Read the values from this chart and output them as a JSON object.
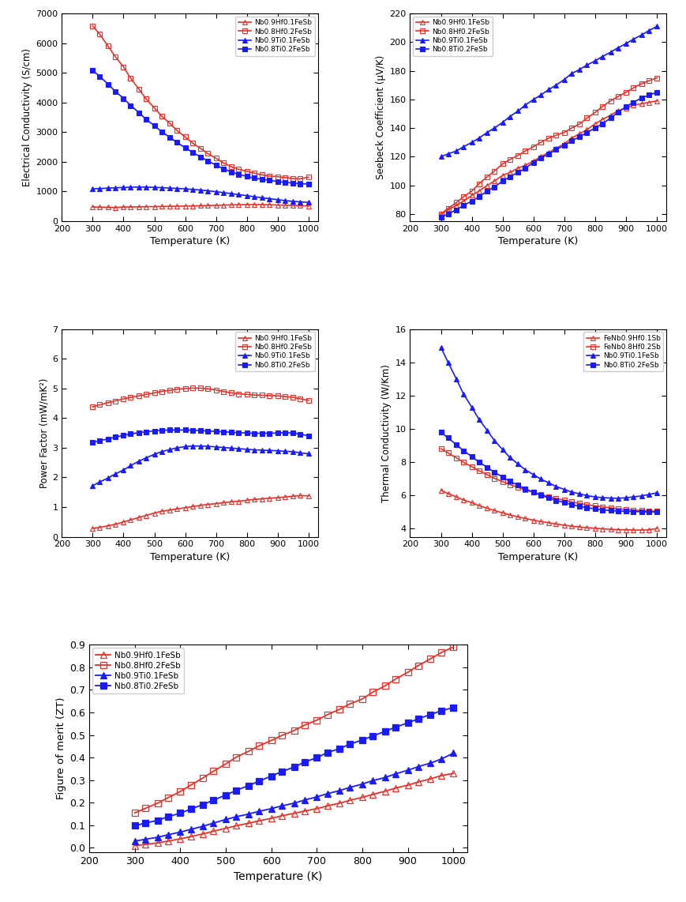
{
  "temperature": [
    300,
    323,
    350,
    373,
    400,
    423,
    450,
    473,
    500,
    523,
    550,
    573,
    600,
    623,
    650,
    673,
    700,
    723,
    750,
    773,
    800,
    823,
    850,
    873,
    900,
    923,
    950,
    973,
    1000
  ],
  "elec_cond": {
    "Nb0.9Hf0.1FeSb": [
      480,
      475,
      468,
      462,
      478,
      480,
      482,
      488,
      492,
      496,
      500,
      505,
      510,
      515,
      520,
      528,
      535,
      542,
      550,
      555,
      558,
      560,
      558,
      552,
      545,
      538,
      530,
      522,
      510
    ],
    "Nb0.8Hf0.2FeSb": [
      6580,
      6300,
      5900,
      5550,
      5200,
      4820,
      4450,
      4120,
      3820,
      3550,
      3300,
      3060,
      2840,
      2640,
      2450,
      2280,
      2120,
      1970,
      1830,
      1750,
      1680,
      1620,
      1560,
      1520,
      1500,
      1470,
      1440,
      1430,
      1480
    ],
    "Nb0.9Ti0.1FeSb": [
      1090,
      1100,
      1115,
      1125,
      1135,
      1145,
      1150,
      1148,
      1140,
      1130,
      1118,
      1105,
      1090,
      1072,
      1050,
      1025,
      995,
      965,
      930,
      895,
      860,
      825,
      790,
      758,
      725,
      695,
      668,
      648,
      635
    ],
    "Nb0.8Ti0.2FeSb": [
      5080,
      4880,
      4620,
      4380,
      4140,
      3900,
      3660,
      3430,
      3220,
      3020,
      2830,
      2650,
      2480,
      2320,
      2170,
      2030,
      1890,
      1770,
      1660,
      1580,
      1510,
      1455,
      1410,
      1375,
      1340,
      1310,
      1285,
      1265,
      1250
    ]
  },
  "seebeck": {
    "Nb0.9Hf0.1FeSb": [
      80,
      83,
      86,
      89,
      93,
      96,
      100,
      103,
      107,
      109,
      112,
      114,
      117,
      120,
      123,
      126,
      129,
      133,
      136,
      139,
      143,
      146,
      149,
      152,
      154,
      156,
      157,
      158,
      159
    ],
    "Nb0.8Hf0.2FeSb": [
      80,
      84,
      88,
      92,
      96,
      101,
      106,
      110,
      115,
      118,
      121,
      124,
      127,
      130,
      133,
      135,
      137,
      140,
      143,
      147,
      151,
      155,
      159,
      162,
      165,
      168,
      171,
      173,
      175
    ],
    "Nb0.9Ti0.1FeSb": [
      120,
      122,
      124,
      127,
      130,
      133,
      137,
      140,
      144,
      148,
      152,
      156,
      160,
      163,
      167,
      170,
      174,
      178,
      181,
      184,
      187,
      190,
      193,
      196,
      199,
      202,
      205,
      208,
      211
    ],
    "Nb0.8Ti0.2FeSb": [
      78,
      80,
      83,
      86,
      89,
      92,
      96,
      99,
      103,
      106,
      109,
      112,
      116,
      119,
      122,
      125,
      128,
      131,
      134,
      137,
      140,
      143,
      147,
      151,
      155,
      158,
      161,
      163,
      165
    ]
  },
  "power_factor": {
    "Nb0.9Hf0.1FeSb": [
      0.28,
      0.32,
      0.37,
      0.42,
      0.5,
      0.57,
      0.65,
      0.72,
      0.8,
      0.86,
      0.9,
      0.94,
      0.98,
      1.02,
      1.06,
      1.09,
      1.12,
      1.15,
      1.18,
      1.2,
      1.23,
      1.26,
      1.28,
      1.3,
      1.32,
      1.34,
      1.37,
      1.39,
      1.38
    ],
    "Nb0.8Hf0.2FeSb": [
      4.38,
      4.45,
      4.52,
      4.58,
      4.65,
      4.7,
      4.75,
      4.8,
      4.85,
      4.9,
      4.94,
      4.97,
      5.0,
      5.01,
      5.01,
      4.99,
      4.95,
      4.9,
      4.85,
      4.82,
      4.8,
      4.78,
      4.77,
      4.76,
      4.75,
      4.73,
      4.7,
      4.65,
      4.6
    ],
    "Nb0.9Ti0.1FeSb": [
      1.72,
      1.85,
      1.98,
      2.12,
      2.25,
      2.4,
      2.55,
      2.66,
      2.78,
      2.87,
      2.94,
      3.0,
      3.04,
      3.06,
      3.06,
      3.05,
      3.03,
      3.01,
      2.99,
      2.97,
      2.95,
      2.93,
      2.92,
      2.91,
      2.9,
      2.88,
      2.87,
      2.83,
      2.8
    ],
    "Nb0.8Ti0.2FeSb": [
      3.18,
      3.24,
      3.3,
      3.36,
      3.42,
      3.47,
      3.51,
      3.54,
      3.57,
      3.59,
      3.6,
      3.6,
      3.6,
      3.59,
      3.58,
      3.57,
      3.55,
      3.54,
      3.52,
      3.51,
      3.5,
      3.49,
      3.49,
      3.49,
      3.5,
      3.51,
      3.5,
      3.46,
      3.4
    ]
  },
  "thermal_cond": {
    "FeNb0.9Hf0.1Sb": [
      6.3,
      6.1,
      5.9,
      5.72,
      5.55,
      5.38,
      5.22,
      5.08,
      4.94,
      4.82,
      4.7,
      4.6,
      4.5,
      4.42,
      4.34,
      4.27,
      4.2,
      4.14,
      4.09,
      4.05,
      4.01,
      3.98,
      3.95,
      3.93,
      3.92,
      3.91,
      3.9,
      3.92,
      4.0
    ],
    "FeNb0.8Hf0.2Sb": [
      8.8,
      8.55,
      8.25,
      7.98,
      7.72,
      7.48,
      7.24,
      7.02,
      6.82,
      6.64,
      6.47,
      6.32,
      6.18,
      6.05,
      5.92,
      5.81,
      5.7,
      5.6,
      5.51,
      5.43,
      5.36,
      5.3,
      5.24,
      5.19,
      5.15,
      5.11,
      5.08,
      5.05,
      5.03
    ],
    "Nb0.9Ti0.1FeSb": [
      14.9,
      14.0,
      13.0,
      12.1,
      11.3,
      10.58,
      9.9,
      9.3,
      8.75,
      8.28,
      7.88,
      7.54,
      7.24,
      6.98,
      6.74,
      6.53,
      6.35,
      6.2,
      6.08,
      5.98,
      5.9,
      5.86,
      5.83,
      5.82,
      5.85,
      5.9,
      5.96,
      6.04,
      6.15
    ],
    "Nb0.8Ti0.2FeSb": [
      9.8,
      9.45,
      9.05,
      8.68,
      8.33,
      8.0,
      7.68,
      7.38,
      7.1,
      6.84,
      6.6,
      6.38,
      6.18,
      6.0,
      5.84,
      5.69,
      5.56,
      5.44,
      5.34,
      5.25,
      5.18,
      5.12,
      5.08,
      5.05,
      5.03,
      5.02,
      5.01,
      5.0,
      5.0
    ]
  },
  "figure_of_merit": {
    "Nb0.9Hf0.1FeSb": [
      0.01,
      0.015,
      0.022,
      0.03,
      0.04,
      0.05,
      0.062,
      0.074,
      0.087,
      0.098,
      0.109,
      0.12,
      0.131,
      0.142,
      0.153,
      0.163,
      0.174,
      0.186,
      0.198,
      0.211,
      0.224,
      0.237,
      0.251,
      0.265,
      0.278,
      0.292,
      0.306,
      0.32,
      0.33
    ],
    "Nb0.8Hf0.2FeSb": [
      0.155,
      0.175,
      0.198,
      0.222,
      0.25,
      0.278,
      0.31,
      0.34,
      0.372,
      0.402,
      0.428,
      0.452,
      0.476,
      0.498,
      0.52,
      0.544,
      0.566,
      0.59,
      0.614,
      0.638,
      0.66,
      0.69,
      0.718,
      0.748,
      0.778,
      0.808,
      0.838,
      0.865,
      0.89
    ],
    "Nb0.9Ti0.1FeSb": [
      0.03,
      0.038,
      0.047,
      0.058,
      0.07,
      0.082,
      0.096,
      0.11,
      0.126,
      0.138,
      0.15,
      0.162,
      0.174,
      0.186,
      0.198,
      0.212,
      0.226,
      0.24,
      0.254,
      0.268,
      0.283,
      0.298,
      0.312,
      0.328,
      0.344,
      0.36,
      0.376,
      0.393,
      0.42
    ],
    "Nb0.8Ti0.2FeSb": [
      0.098,
      0.11,
      0.122,
      0.138,
      0.154,
      0.172,
      0.192,
      0.212,
      0.234,
      0.255,
      0.276,
      0.296,
      0.318,
      0.338,
      0.358,
      0.38,
      0.4,
      0.422,
      0.44,
      0.46,
      0.478,
      0.496,
      0.516,
      0.535,
      0.554,
      0.572,
      0.591,
      0.607,
      0.622
    ]
  },
  "red": "#e8312a",
  "blue": "#1a1aff",
  "plot1_legend": [
    "Nb0.9Hf0.1FeSb",
    "Nb0.8Hf0.2FeSb",
    "Nb0.9Ti0.1FeSb",
    "Nb0.8Ti0.2FeSb"
  ],
  "plot2_legend": [
    "Nb0.9Hf0.1FeSb",
    "Nb0.8Hf0.2FeSb",
    "Nb0.9Ti0.1FeSb",
    "Nb0.8Ti0.2FeSb"
  ],
  "plot3_legend": [
    "Nb0.9Hf0.1FeSb",
    "Nb0.8Hf0.2FeSb",
    "Nb0.9Ti0.1FeSb",
    "Nb0.8Ti0.2FeSb"
  ],
  "plot4_legend": [
    "FeNb0.9Hf0.1Sb",
    "FeNb0.8Hf0.2Sb",
    "Nb0.9Ti0.1FeSb",
    "Nb0.8Ti0.2FeSb"
  ],
  "plot5_legend": [
    "Nb0.9Hf0.1FeSb",
    "Nb0.8Hf0.2FeSb",
    "Nb0.9Ti0.1FeSb",
    "Nb0.8Ti0.2FeSb"
  ]
}
